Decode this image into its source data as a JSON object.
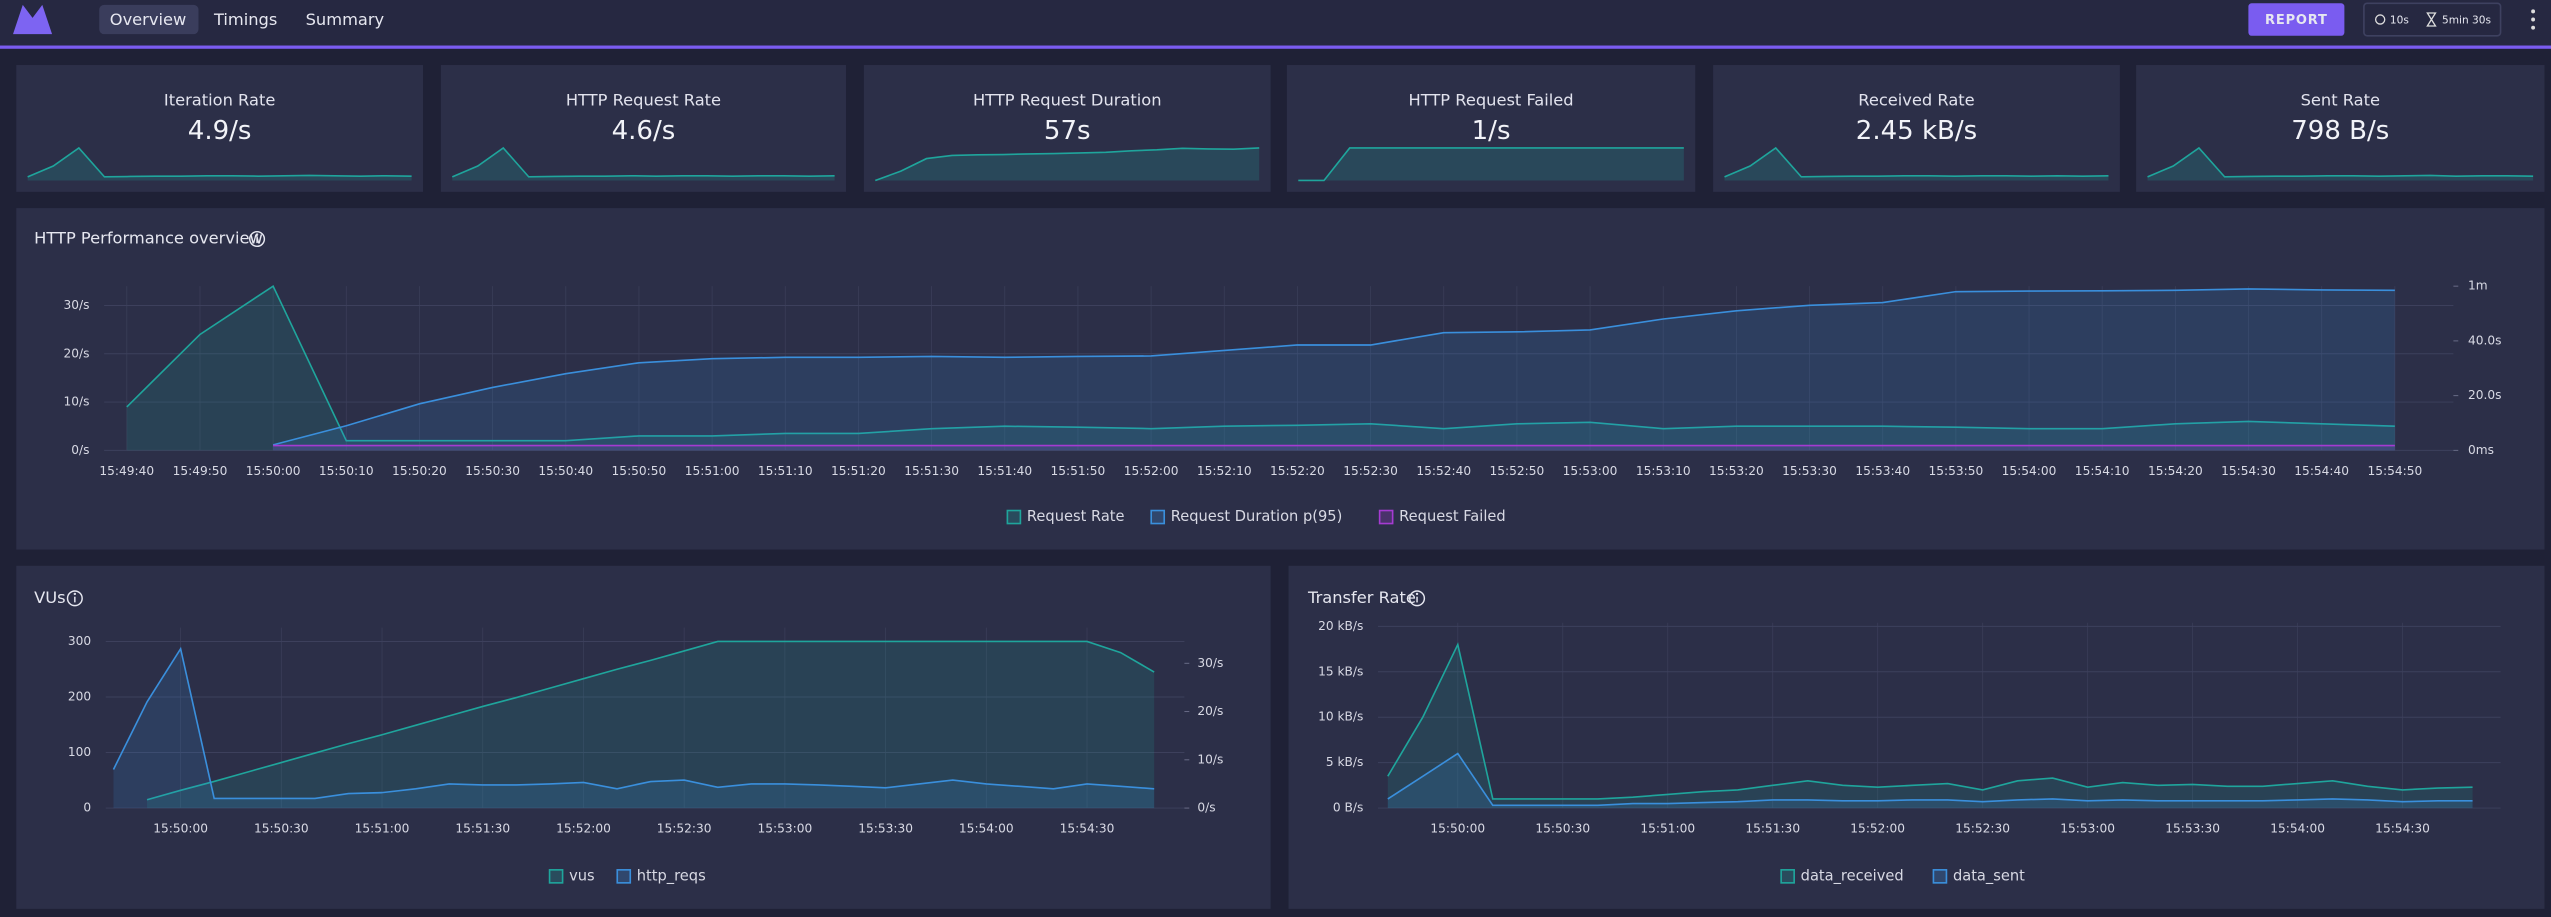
{
  "nav": {
    "tabs": [
      "Overview",
      "Timings",
      "Summary"
    ],
    "report": "REPORT",
    "interval": "10s",
    "duration": "5min 30s"
  },
  "cards": [
    {
      "title": "Iteration Rate",
      "value": "4.9/s",
      "spark": [
        1,
        4,
        9,
        1,
        1.1,
        1.2,
        1.2,
        1.3,
        1.3,
        1.2,
        1.3,
        1.4,
        1.3,
        1.2,
        1.3,
        1.2
      ]
    },
    {
      "title": "HTTP Request Rate",
      "value": "4.6/s",
      "spark": [
        1,
        4,
        9,
        1,
        1.1,
        1.2,
        1.2,
        1.3,
        1.2,
        1.3,
        1.3,
        1.2,
        1.3,
        1.3,
        1.2,
        1.3
      ]
    },
    {
      "title": "HTTP Request Duration",
      "value": "57s",
      "spark": [
        0,
        3,
        7,
        8,
        8.2,
        8.3,
        8.5,
        8.6,
        8.8,
        9,
        9.5,
        9.8,
        10.3,
        10.1,
        10,
        10.4
      ]
    },
    {
      "title": "HTTP Request Failed",
      "value": "1/s",
      "spark": [
        0,
        0,
        1,
        1,
        1,
        1,
        1,
        1,
        1,
        1,
        1,
        1,
        1,
        1,
        1,
        1
      ]
    },
    {
      "title": "Received Rate",
      "value": "2.45 kB/s",
      "spark": [
        1,
        4,
        9,
        1,
        1.1,
        1.2,
        1.2,
        1.3,
        1.3,
        1.2,
        1.3,
        1.3,
        1.2,
        1.3,
        1.2,
        1.3
      ]
    },
    {
      "title": "Sent Rate",
      "value": "798 B/s",
      "spark": [
        1,
        4,
        9,
        1,
        1.1,
        1.2,
        1.2,
        1.3,
        1.3,
        1.2,
        1.3,
        1.4,
        1.2,
        1.3,
        1.3,
        1.2
      ]
    }
  ],
  "charts": [
    {
      "type": "line",
      "title": "HTTP Performance overview",
      "categories": [
        "15:49:40",
        "15:49:50",
        "15:50:00",
        "15:50:10",
        "15:50:20",
        "15:50:30",
        "15:50:40",
        "15:50:50",
        "15:51:00",
        "15:51:10",
        "15:51:20",
        "15:51:30",
        "15:51:40",
        "15:51:50",
        "15:52:00",
        "15:52:10",
        "15:52:20",
        "15:52:30",
        "15:52:40",
        "15:52:50",
        "15:53:00",
        "15:53:10",
        "15:53:20",
        "15:53:30",
        "15:53:40",
        "15:53:50",
        "15:54:00",
        "15:54:10",
        "15:54:20",
        "15:54:30",
        "15:54:40",
        "15:54:50"
      ],
      "ylim": [
        0,
        34
      ],
      "yticks": [
        {
          "value": 0,
          "label": "0/s"
        },
        {
          "value": 10,
          "label": "10/s"
        },
        {
          "value": 20,
          "label": "20/s"
        },
        {
          "value": 30,
          "label": "30/s"
        }
      ],
      "y2lim": [
        0,
        60
      ],
      "y2ticks": [
        {
          "value": 0,
          "label": "0ms"
        },
        {
          "value": 20,
          "label": "20.0s"
        },
        {
          "value": 40,
          "label": "40.0s"
        },
        {
          "value": 60,
          "label": "1m"
        }
      ],
      "series": [
        {
          "name": "Request Rate",
          "color": "#1fa59c",
          "values": [
            9,
            24,
            34,
            2,
            2,
            2,
            2,
            3,
            3,
            3.5,
            3.5,
            4.5,
            5,
            4.8,
            4.5,
            5,
            5.2,
            5.5,
            4.5,
            5.5,
            5.8,
            4.5,
            5,
            5,
            5,
            4.8,
            4.5,
            4.5,
            5.5,
            6,
            5.5,
            5
          ]
        },
        {
          "name": "Request Duration p(95)",
          "color": "#3a8fdc",
          "axis": "y2",
          "values": [
            null,
            null,
            2,
            9,
            17,
            23,
            28,
            32,
            33.5,
            34,
            34,
            34.3,
            34,
            34.3,
            34.5,
            36.5,
            38.5,
            38.5,
            43,
            43.3,
            44,
            48,
            51,
            53,
            54,
            58,
            58.2,
            58.3,
            58.5,
            59,
            58.6,
            58.5
          ]
        },
        {
          "name": "Request Failed",
          "color": "#a53bd2",
          "values": [
            null,
            null,
            1,
            1,
            1,
            1,
            1,
            1,
            1,
            1,
            1,
            1,
            1,
            1,
            1,
            1,
            1,
            1,
            1,
            1,
            1,
            1,
            1,
            1,
            1,
            1,
            1,
            1,
            1,
            1,
            1,
            1
          ]
        }
      ]
    },
    {
      "type": "line",
      "title": "VUs",
      "categories": [
        null,
        null,
        "15:50:00",
        null,
        null,
        "15:50:30",
        null,
        null,
        "15:51:00",
        null,
        null,
        "15:51:30",
        null,
        null,
        "15:52:00",
        null,
        null,
        "15:52:30",
        null,
        null,
        "15:53:00",
        null,
        null,
        "15:53:30",
        null,
        null,
        "15:54:00",
        null,
        null,
        "15:54:30",
        null,
        null
      ],
      "ylim": [
        0,
        325
      ],
      "yticks": [
        0,
        100,
        200,
        300
      ],
      "y2lim": [
        0,
        37.4
      ],
      "y2ticks": [
        {
          "value": 0,
          "label": "0/s"
        },
        {
          "value": 10,
          "label": "10/s"
        },
        {
          "value": 20,
          "label": "20/s"
        },
        {
          "value": 30,
          "label": "30/s"
        }
      ],
      "series": [
        {
          "name": "vus",
          "color": "#1fa59c",
          "values": [
            null,
            15,
            32,
            48,
            65,
            82,
            99,
            116,
            132,
            149,
            166,
            183,
            199,
            216,
            233,
            250,
            266,
            283,
            300,
            300,
            300,
            300,
            300,
            300,
            300,
            300,
            300,
            300,
            300,
            300,
            280,
            245
          ]
        },
        {
          "name": "http_reqs",
          "color": "#3a8fdc",
          "axis": "y2",
          "values": [
            8,
            22,
            33,
            2,
            2,
            2,
            2,
            3,
            3.2,
            4,
            5,
            4.8,
            4.8,
            5,
            5.3,
            4,
            5.5,
            5.8,
            4.3,
            5,
            5,
            4.8,
            4.5,
            4.2,
            5,
            5.8,
            5,
            4.5,
            4,
            5,
            4.5,
            4
          ]
        }
      ]
    },
    {
      "type": "line",
      "title": "Transfer Rate",
      "categories": [
        null,
        null,
        "15:50:00",
        null,
        null,
        "15:50:30",
        null,
        null,
        "15:51:00",
        null,
        null,
        "15:51:30",
        null,
        null,
        "15:52:00",
        null,
        null,
        "15:52:30",
        null,
        null,
        "15:53:00",
        null,
        null,
        "15:53:30",
        null,
        null,
        "15:54:00",
        null,
        null,
        "15:54:30",
        null,
        null
      ],
      "ylim": [
        0,
        20.4
      ],
      "yticks": [
        {
          "value": 0,
          "label": "0 B/s"
        },
        {
          "value": 5,
          "label": "5 kB/s"
        },
        {
          "value": 10,
          "label": "10 kB/s"
        },
        {
          "value": 15,
          "label": "15 kB/s"
        },
        {
          "value": 20,
          "label": "20 kB/s"
        }
      ],
      "series": [
        {
          "name": "data_received",
          "color": "#1fa59c",
          "values": [
            3.5,
            10,
            18,
            1,
            1,
            1,
            1,
            1.2,
            1.5,
            1.8,
            2,
            2.5,
            3,
            2.5,
            2.3,
            2.5,
            2.7,
            2,
            3,
            3.3,
            2.3,
            2.8,
            2.5,
            2.6,
            2.4,
            2.4,
            2.7,
            3,
            2.4,
            2,
            2.2,
            2.3
          ]
        },
        {
          "name": "data_sent",
          "color": "#3a8fdc",
          "values": [
            1,
            3.5,
            6,
            0.3,
            0.3,
            0.3,
            0.3,
            0.5,
            0.5,
            0.6,
            0.7,
            0.9,
            0.9,
            0.8,
            0.8,
            0.9,
            0.9,
            0.7,
            0.9,
            1,
            0.8,
            0.9,
            0.8,
            0.8,
            0.8,
            0.8,
            0.9,
            1,
            0.9,
            0.7,
            0.8,
            0.8
          ]
        }
      ]
    }
  ]
}
